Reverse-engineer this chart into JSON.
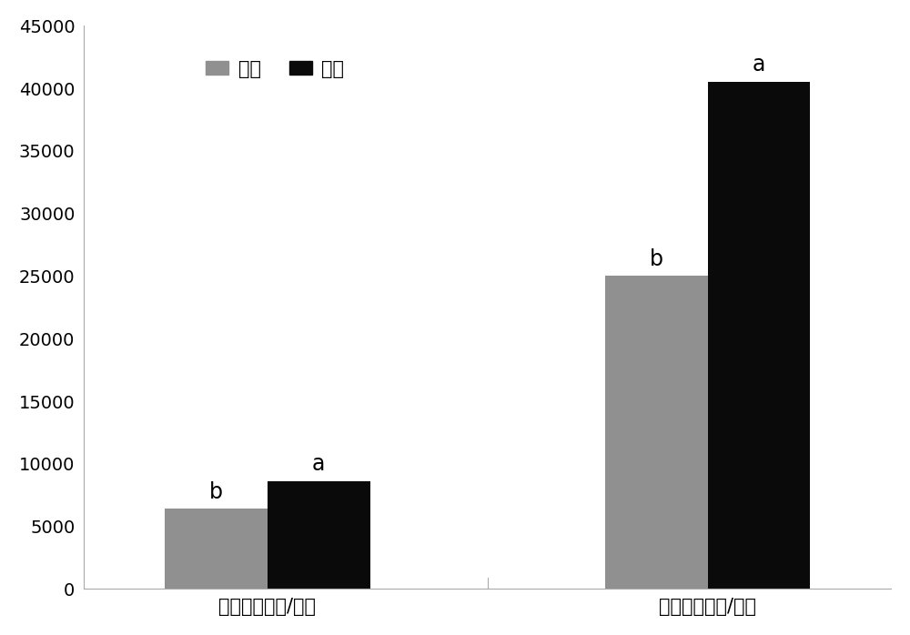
{
  "categories": [
    "亩产量（公斤/亩）",
    "商品果数（个/亩）"
  ],
  "control_values": [
    6400,
    25000
  ],
  "treatment_values": [
    8600,
    40500
  ],
  "control_label": "对照",
  "treatment_label": "处理",
  "control_color": "#909090",
  "treatment_color": "#0a0a0a",
  "control_annotations": [
    "b",
    "b"
  ],
  "treatment_annotations": [
    "a",
    "a"
  ],
  "ylim": [
    0,
    45000
  ],
  "yticks": [
    0,
    5000,
    10000,
    15000,
    20000,
    25000,
    30000,
    35000,
    40000,
    45000
  ],
  "bar_width": 0.28,
  "annotation_fontsize": 17,
  "legend_fontsize": 15,
  "tick_fontsize": 14,
  "xlabel_fontsize": 15,
  "background_color": "#ffffff",
  "fig_width": 10.0,
  "fig_height": 6.98
}
